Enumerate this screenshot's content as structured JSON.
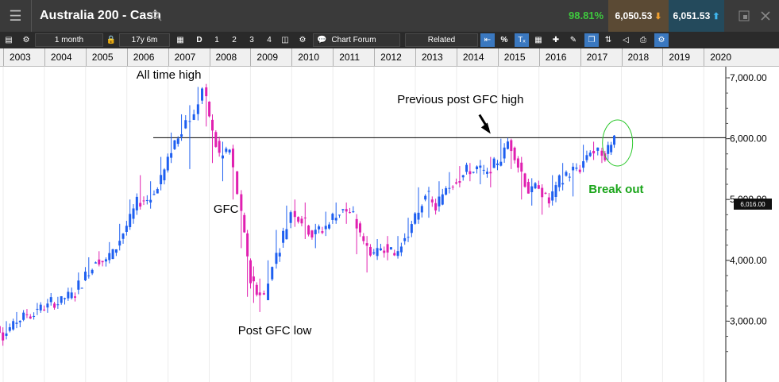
{
  "window": {
    "title": "Australia 200 - Cash",
    "change_pct": "98.81%",
    "sell_price": "6,050.53",
    "buy_price": "6,051.53"
  },
  "toolbar": {
    "interval": "1 month",
    "range": "17y 6m",
    "day_btn": "D",
    "btn_1": "1",
    "btn_2": "2",
    "btn_3": "3",
    "btn_4": "4",
    "chart_forum": "Chart Forum",
    "related": "Related",
    "pct_btn": "%"
  },
  "chart_data": {
    "type": "candlestick",
    "instrument": "Australia 200 - Cash",
    "timeframe": "1 month",
    "x_axis_years": [
      "2003",
      "2004",
      "2005",
      "2006",
      "2007",
      "2008",
      "2009",
      "2010",
      "2011",
      "2012",
      "2013",
      "2014",
      "2015",
      "2016",
      "2017",
      "2018",
      "2019",
      "2020"
    ],
    "y_ticks": [
      "3,000.00",
      "4,000.00",
      "5,000.00",
      "6,000.00",
      "7,000.00"
    ],
    "ylim": [
      2500,
      7100
    ],
    "horizontal_line": {
      "value": 6016,
      "label": "6,016.00"
    },
    "up_color": "#1e5ff0",
    "down_color": "#e020b0",
    "annotations": [
      {
        "text": "All time high",
        "year": 2007.35,
        "value": 7000
      },
      {
        "text": "Previous post GFC high",
        "year": 2014.7,
        "value": 6650
      },
      {
        "text": "GFC",
        "year": 2008.45,
        "value": 4850
      },
      {
        "text": "Post GFC low",
        "year": 2009.2,
        "value": 2850
      },
      {
        "text": "Break out",
        "year": 2017.9,
        "value": 5170
      }
    ],
    "series": [
      {
        "values": [
          {
            "year": 2002.5,
            "open": 3100,
            "high": 3150,
            "low": 2900,
            "close": 2950
          },
          {
            "year": 2002.75,
            "open": 2950,
            "high": 3000,
            "low": 2750,
            "close": 2800
          },
          {
            "year": 2003.0,
            "open": 2800,
            "high": 3000,
            "low": 2700,
            "close": 2950
          },
          {
            "year": 2003.25,
            "open": 2950,
            "high": 3150,
            "low": 2900,
            "close": 3100
          },
          {
            "year": 2003.5,
            "open": 3100,
            "high": 3200,
            "low": 3050,
            "close": 3150
          },
          {
            "year": 2003.75,
            "open": 3150,
            "high": 3300,
            "low": 3100,
            "close": 3250
          },
          {
            "year": 2004.0,
            "open": 3250,
            "high": 3350,
            "low": 3200,
            "close": 3300
          },
          {
            "year": 2004.25,
            "open": 3300,
            "high": 3400,
            "low": 3250,
            "close": 3380
          },
          {
            "year": 2004.5,
            "open": 3380,
            "high": 3550,
            "low": 3350,
            "close": 3500
          },
          {
            "year": 2004.75,
            "open": 3500,
            "high": 3800,
            "low": 3450,
            "close": 3750
          },
          {
            "year": 2005.0,
            "open": 3750,
            "high": 4050,
            "low": 3700,
            "close": 4000
          },
          {
            "year": 2005.25,
            "open": 4000,
            "high": 4150,
            "low": 3900,
            "close": 3980
          },
          {
            "year": 2005.5,
            "open": 3980,
            "high": 4300,
            "low": 3950,
            "close": 4250
          },
          {
            "year": 2005.75,
            "open": 4250,
            "high": 4600,
            "low": 4200,
            "close": 4550
          },
          {
            "year": 2006.0,
            "open": 4550,
            "high": 5000,
            "low": 4500,
            "close": 4950
          },
          {
            "year": 2006.25,
            "open": 4950,
            "high": 5400,
            "low": 4900,
            "close": 5000
          },
          {
            "year": 2006.5,
            "open": 5000,
            "high": 5300,
            "low": 4850,
            "close": 5200
          },
          {
            "year": 2006.75,
            "open": 5200,
            "high": 5700,
            "low": 5150,
            "close": 5650
          },
          {
            "year": 2007.0,
            "open": 5650,
            "high": 6100,
            "low": 5600,
            "close": 6050
          },
          {
            "year": 2007.25,
            "open": 6050,
            "high": 6400,
            "low": 6000,
            "close": 6300
          },
          {
            "year": 2007.45,
            "open": 6300,
            "high": 6550,
            "low": 5500,
            "close": 6400
          },
          {
            "year": 2007.65,
            "open": 6400,
            "high": 6850,
            "low": 6300,
            "close": 6800
          },
          {
            "year": 2007.85,
            "open": 6800,
            "high": 6900,
            "low": 6200,
            "close": 6350
          },
          {
            "year": 2008.0,
            "open": 6350,
            "high": 6400,
            "low": 5600,
            "close": 5700
          },
          {
            "year": 2008.25,
            "open": 5700,
            "high": 5950,
            "low": 5300,
            "close": 5800
          },
          {
            "year": 2008.5,
            "open": 5800,
            "high": 5900,
            "low": 5000,
            "close": 5100
          },
          {
            "year": 2008.7,
            "open": 5100,
            "high": 5150,
            "low": 4200,
            "close": 4400
          },
          {
            "year": 2008.85,
            "open": 4400,
            "high": 4500,
            "low": 3400,
            "close": 3700
          },
          {
            "year": 2009.0,
            "open": 3700,
            "high": 3900,
            "low": 3300,
            "close": 3500
          },
          {
            "year": 2009.15,
            "open": 3500,
            "high": 3700,
            "low": 3150,
            "close": 3400
          },
          {
            "year": 2009.35,
            "open": 3400,
            "high": 4000,
            "low": 3350,
            "close": 3950
          },
          {
            "year": 2009.55,
            "open": 3950,
            "high": 4500,
            "low": 3900,
            "close": 4400
          },
          {
            "year": 2009.8,
            "open": 4400,
            "high": 4900,
            "low": 4350,
            "close": 4800
          },
          {
            "year": 2010.0,
            "open": 4800,
            "high": 5000,
            "low": 4550,
            "close": 4700
          },
          {
            "year": 2010.25,
            "open": 4700,
            "high": 4950,
            "low": 4350,
            "close": 4450
          },
          {
            "year": 2010.5,
            "open": 4450,
            "high": 4600,
            "low": 4200,
            "close": 4500
          },
          {
            "year": 2010.75,
            "open": 4500,
            "high": 4800,
            "low": 4400,
            "close": 4700
          },
          {
            "year": 2011.0,
            "open": 4700,
            "high": 4950,
            "low": 4600,
            "close": 4850
          },
          {
            "year": 2011.25,
            "open": 4850,
            "high": 4950,
            "low": 4600,
            "close": 4700
          },
          {
            "year": 2011.5,
            "open": 4700,
            "high": 4750,
            "low": 4100,
            "close": 4300
          },
          {
            "year": 2011.75,
            "open": 4300,
            "high": 4400,
            "low": 3800,
            "close": 4100
          },
          {
            "year": 2012.0,
            "open": 4100,
            "high": 4350,
            "low": 4050,
            "close": 4250
          },
          {
            "year": 2012.25,
            "open": 4250,
            "high": 4400,
            "low": 4000,
            "close": 4100
          },
          {
            "year": 2012.5,
            "open": 4100,
            "high": 4400,
            "low": 4050,
            "close": 4350
          },
          {
            "year": 2012.75,
            "open": 4350,
            "high": 4700,
            "low": 4300,
            "close": 4650
          },
          {
            "year": 2013.0,
            "open": 4650,
            "high": 5200,
            "low": 4600,
            "close": 5100
          },
          {
            "year": 2013.25,
            "open": 5100,
            "high": 5200,
            "low": 4700,
            "close": 4850
          },
          {
            "year": 2013.5,
            "open": 4850,
            "high": 5300,
            "low": 4800,
            "close": 5200
          },
          {
            "year": 2013.75,
            "open": 5200,
            "high": 5450,
            "low": 5100,
            "close": 5350
          },
          {
            "year": 2014.0,
            "open": 5350,
            "high": 5550,
            "low": 5200,
            "close": 5450
          },
          {
            "year": 2014.25,
            "open": 5450,
            "high": 5600,
            "low": 5300,
            "close": 5500
          },
          {
            "year": 2014.5,
            "open": 5500,
            "high": 5650,
            "low": 5250,
            "close": 5400
          },
          {
            "year": 2014.75,
            "open": 5400,
            "high": 5700,
            "low": 5200,
            "close": 5600
          },
          {
            "year": 2015.0,
            "open": 5600,
            "high": 6000,
            "low": 5550,
            "close": 5950
          },
          {
            "year": 2015.25,
            "open": 5950,
            "high": 6000,
            "low": 5500,
            "close": 5600
          },
          {
            "year": 2015.5,
            "open": 5600,
            "high": 5700,
            "low": 5000,
            "close": 5150
          },
          {
            "year": 2015.75,
            "open": 5150,
            "high": 5350,
            "low": 4900,
            "close": 5200
          },
          {
            "year": 2016.0,
            "open": 5200,
            "high": 5250,
            "low": 4750,
            "close": 4950
          },
          {
            "year": 2016.25,
            "open": 4950,
            "high": 5400,
            "low": 4900,
            "close": 5300
          },
          {
            "year": 2016.5,
            "open": 5300,
            "high": 5600,
            "low": 5150,
            "close": 5450
          },
          {
            "year": 2016.75,
            "open": 5450,
            "high": 5600,
            "low": 5050,
            "close": 5500
          },
          {
            "year": 2017.0,
            "open": 5500,
            "high": 5900,
            "low": 5450,
            "close": 5800
          },
          {
            "year": 2017.25,
            "open": 5800,
            "high": 5950,
            "low": 5650,
            "close": 5750
          },
          {
            "year": 2017.45,
            "open": 5750,
            "high": 5850,
            "low": 5600,
            "close": 5700
          },
          {
            "year": 2017.6,
            "open": 5700,
            "high": 5950,
            "low": 5650,
            "close": 5900
          },
          {
            "year": 2017.75,
            "open": 5900,
            "high": 6060,
            "low": 5850,
            "close": 6050
          }
        ]
      }
    ]
  }
}
